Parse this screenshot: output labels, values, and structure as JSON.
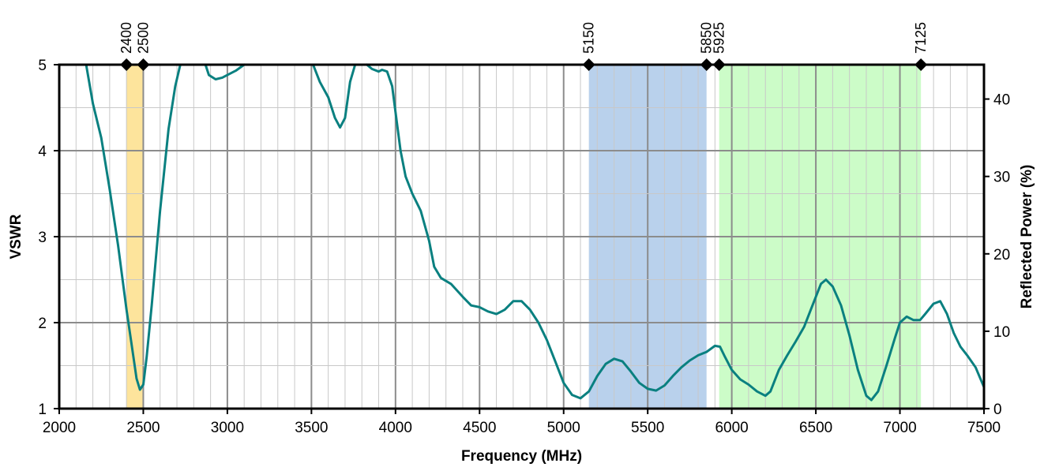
{
  "chart_data": {
    "type": "line",
    "title": "",
    "xlabel": "Frequency (MHz)",
    "ylabel": "VSWR",
    "y2label": "Reflected Power (%)",
    "xlim": [
      2000,
      7500
    ],
    "ylim": [
      1,
      5
    ],
    "y2lim": [
      0,
      44.44
    ],
    "x_ticks": [
      2000,
      2500,
      3000,
      3500,
      4000,
      4500,
      5000,
      5500,
      6000,
      6500,
      7000,
      7500
    ],
    "y_ticks": [
      1,
      2,
      3,
      4,
      5
    ],
    "y2_ticks": [
      0,
      10,
      20,
      30,
      40
    ],
    "grid": true,
    "legend": "none",
    "bands": [
      {
        "start": 2400,
        "end": 2500,
        "color": "#fde49c"
      },
      {
        "start": 5150,
        "end": 5850,
        "color": "#b9d1ec"
      },
      {
        "start": 5925,
        "end": 7125,
        "color": "#ccfcc8"
      }
    ],
    "markers": [
      {
        "x": 2400,
        "label": "2400"
      },
      {
        "x": 2500,
        "label": "2500"
      },
      {
        "x": 5150,
        "label": "5150"
      },
      {
        "x": 5850,
        "label": "5850"
      },
      {
        "x": 5925,
        "label": "5925"
      },
      {
        "x": 7125,
        "label": "7125"
      }
    ],
    "series": [
      {
        "color": "#0a8080",
        "segments": [
          [
            [
              2160,
              5.0
            ],
            [
              2200,
              4.55
            ],
            [
              2250,
              4.15
            ],
            [
              2300,
              3.55
            ],
            [
              2350,
              2.9
            ],
            [
              2400,
              2.15
            ],
            [
              2430,
              1.75
            ],
            [
              2460,
              1.35
            ],
            [
              2480,
              1.22
            ],
            [
              2500,
              1.28
            ],
            [
              2520,
              1.6
            ],
            [
              2550,
              2.2
            ],
            [
              2600,
              3.3
            ],
            [
              2650,
              4.25
            ],
            [
              2690,
              4.75
            ],
            [
              2720,
              5.0
            ]
          ],
          [
            [
              2870,
              5.0
            ],
            [
              2890,
              4.88
            ],
            [
              2930,
              4.83
            ],
            [
              2970,
              4.85
            ],
            [
              3000,
              4.88
            ],
            [
              3050,
              4.93
            ],
            [
              3100,
              5.0
            ]
          ],
          [
            [
              3510,
              5.0
            ],
            [
              3550,
              4.8
            ],
            [
              3600,
              4.62
            ],
            [
              3640,
              4.38
            ],
            [
              3670,
              4.27
            ],
            [
              3700,
              4.38
            ],
            [
              3730,
              4.8
            ],
            [
              3760,
              5.0
            ]
          ],
          [
            [
              3830,
              5.0
            ],
            [
              3860,
              4.95
            ],
            [
              3900,
              4.92
            ],
            [
              3920,
              4.94
            ],
            [
              3950,
              4.92
            ],
            [
              3980,
              4.75
            ],
            [
              4000,
              4.45
            ],
            [
              4030,
              4.0
            ],
            [
              4060,
              3.7
            ],
            [
              4100,
              3.5
            ],
            [
              4150,
              3.3
            ],
            [
              4200,
              2.95
            ],
            [
              4230,
              2.65
            ],
            [
              4270,
              2.52
            ],
            [
              4330,
              2.45
            ],
            [
              4400,
              2.3
            ],
            [
              4450,
              2.2
            ],
            [
              4500,
              2.18
            ],
            [
              4550,
              2.13
            ],
            [
              4600,
              2.1
            ],
            [
              4650,
              2.15
            ],
            [
              4700,
              2.25
            ],
            [
              4750,
              2.25
            ],
            [
              4800,
              2.15
            ],
            [
              4850,
              2.0
            ],
            [
              4900,
              1.8
            ],
            [
              4950,
              1.55
            ],
            [
              5000,
              1.3
            ],
            [
              5050,
              1.16
            ],
            [
              5100,
              1.12
            ],
            [
              5150,
              1.2
            ],
            [
              5200,
              1.38
            ],
            [
              5250,
              1.52
            ],
            [
              5300,
              1.58
            ],
            [
              5350,
              1.55
            ],
            [
              5400,
              1.43
            ],
            [
              5450,
              1.3
            ],
            [
              5500,
              1.23
            ],
            [
              5550,
              1.21
            ],
            [
              5600,
              1.27
            ],
            [
              5650,
              1.38
            ],
            [
              5700,
              1.48
            ],
            [
              5750,
              1.56
            ],
            [
              5800,
              1.62
            ],
            [
              5850,
              1.66
            ],
            [
              5900,
              1.73
            ],
            [
              5930,
              1.72
            ],
            [
              5960,
              1.6
            ],
            [
              6000,
              1.45
            ],
            [
              6050,
              1.34
            ],
            [
              6100,
              1.28
            ],
            [
              6150,
              1.2
            ],
            [
              6200,
              1.15
            ],
            [
              6230,
              1.2
            ],
            [
              6280,
              1.45
            ],
            [
              6330,
              1.62
            ],
            [
              6380,
              1.78
            ],
            [
              6430,
              1.95
            ],
            [
              6480,
              2.2
            ],
            [
              6530,
              2.45
            ],
            [
              6560,
              2.5
            ],
            [
              6600,
              2.42
            ],
            [
              6650,
              2.2
            ],
            [
              6700,
              1.85
            ],
            [
              6750,
              1.45
            ],
            [
              6800,
              1.15
            ],
            [
              6830,
              1.1
            ],
            [
              6870,
              1.2
            ],
            [
              6920,
              1.5
            ],
            [
              6970,
              1.82
            ],
            [
              7000,
              2.0
            ],
            [
              7040,
              2.07
            ],
            [
              7080,
              2.03
            ],
            [
              7120,
              2.03
            ],
            [
              7150,
              2.1
            ],
            [
              7200,
              2.22
            ],
            [
              7240,
              2.25
            ],
            [
              7280,
              2.1
            ],
            [
              7320,
              1.88
            ],
            [
              7360,
              1.72
            ],
            [
              7400,
              1.62
            ],
            [
              7450,
              1.48
            ],
            [
              7500,
              1.25
            ]
          ]
        ]
      }
    ]
  }
}
